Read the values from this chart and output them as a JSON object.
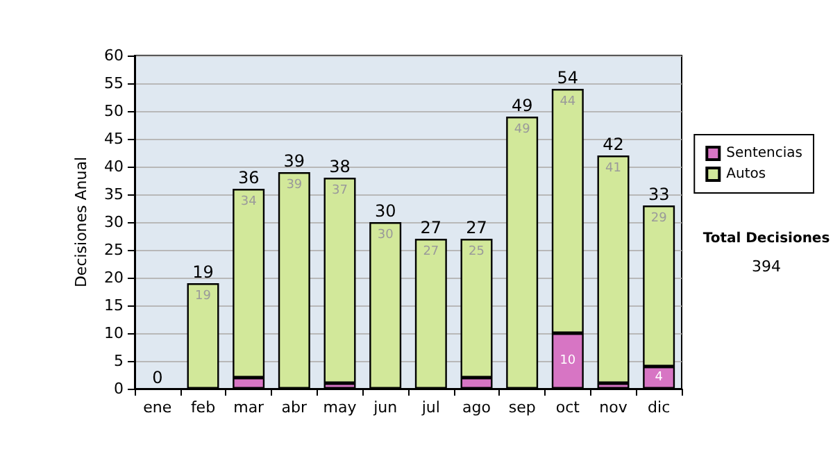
{
  "chart_data": {
    "type": "bar",
    "ylabel": "Decisiones Anual",
    "categories": [
      "ene",
      "feb",
      "mar",
      "abr",
      "may",
      "jun",
      "jul",
      "ago",
      "sep",
      "oct",
      "nov",
      "dic"
    ],
    "stacked": true,
    "series": [
      {
        "name": "Sentencias",
        "color": "#d775c4",
        "values": [
          0,
          0,
          2,
          0,
          1,
          0,
          0,
          2,
          0,
          10,
          1,
          4
        ],
        "value_labels": [
          null,
          null,
          null,
          null,
          null,
          null,
          null,
          null,
          null,
          "10",
          null,
          "4"
        ]
      },
      {
        "name": "Autos",
        "color": "#d2e89a",
        "values": [
          0,
          19,
          34,
          39,
          37,
          30,
          27,
          25,
          49,
          44,
          41,
          29
        ],
        "value_labels": [
          null,
          "19",
          "34",
          "39",
          "37",
          "30",
          "27",
          "25",
          "49",
          "44",
          "41",
          "29"
        ]
      }
    ],
    "totals": [
      "0",
      "19",
      "36",
      "39",
      "38",
      "30",
      "27",
      "27",
      "49",
      "54",
      "42",
      "33"
    ],
    "ylim": [
      0,
      60
    ],
    "yticks": [
      0,
      5,
      10,
      15,
      20,
      25,
      30,
      35,
      40,
      45,
      50,
      55,
      60
    ],
    "grid": "y",
    "legend": "right",
    "annotations": [
      "Total Decisiones",
      "394"
    ]
  }
}
